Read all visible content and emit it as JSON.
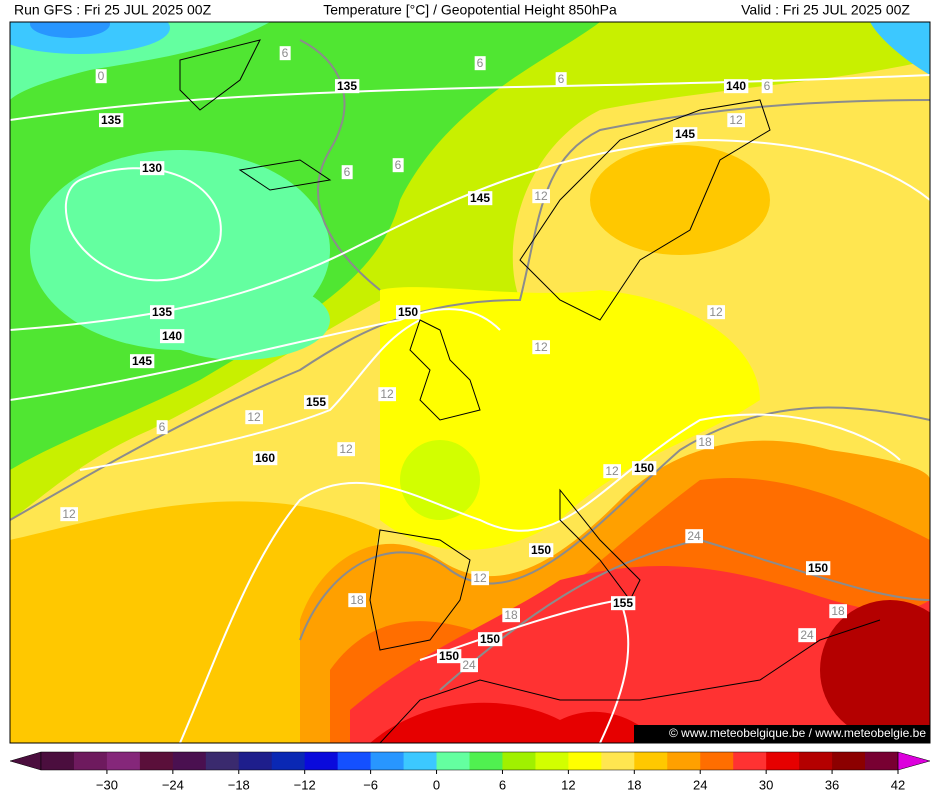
{
  "header": {
    "left": "Run GFS : Fri 25 JUL 2025 00Z",
    "center": "Temperature [°C] / Geopotential Height 850hPa",
    "right": "Valid : Fri 25 JUL 2025 00Z"
  },
  "contour_labels": {
    "heights": [
      "135",
      "140",
      "135",
      "145",
      "130",
      "145",
      "135",
      "150",
      "140",
      "145",
      "155",
      "160",
      "150",
      "150",
      "150",
      "155",
      "150",
      "150"
    ],
    "temperatures": [
      "0",
      "6",
      "6",
      "6",
      "6",
      "12",
      "6",
      "6",
      "12",
      "12",
      "12",
      "12",
      "12",
      "6",
      "12",
      "18",
      "12",
      "12",
      "24",
      "12",
      "18",
      "18",
      "24",
      "18",
      "24"
    ]
  },
  "colorbar": {
    "colors": [
      "#4b0e3e",
      "#6e1a5e",
      "#85277a",
      "#5a0f3a",
      "#4a1050",
      "#3a2a6e",
      "#1e1e8c",
      "#0a28b4",
      "#0a0adc",
      "#1450ff",
      "#2896ff",
      "#3cc8ff",
      "#64ffa0",
      "#50f050",
      "#a0f000",
      "#d2ff00",
      "#ffff00",
      "#ffe650",
      "#ffc800",
      "#ffa000",
      "#ff6e00",
      "#ff3232",
      "#e60000",
      "#b40000",
      "#8c0000",
      "#780032"
    ],
    "ticks": [
      "−30",
      "−24",
      "−18",
      "−12",
      "−6",
      "0",
      "6",
      "12",
      "18",
      "24",
      "30",
      "36",
      "42"
    ]
  },
  "watermark": "© www.meteobelgique.be / www.meteobelgie.be"
}
